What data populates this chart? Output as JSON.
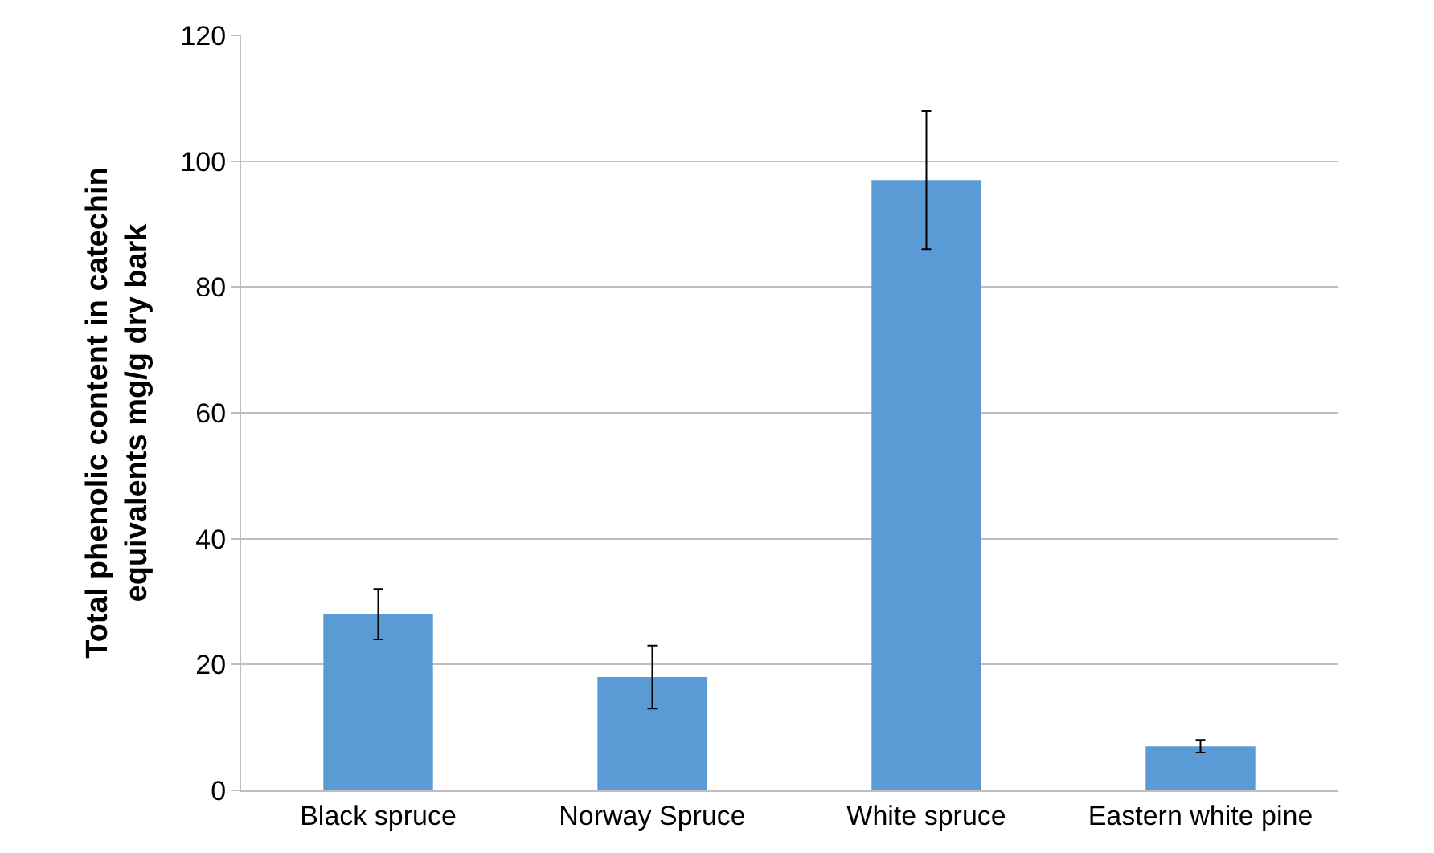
{
  "chart_data": {
    "type": "bar",
    "ylabel": "Total phenolic content in catechin equivalents mg/g dry bark",
    "categories": [
      "Black spruce",
      "Norway Spruce",
      "White spruce",
      "Eastern white pine"
    ],
    "values": [
      28,
      18,
      97,
      7
    ],
    "errors": [
      4,
      5,
      11,
      1
    ],
    "color": "#5b9bd5",
    "ylim": [
      0,
      120
    ],
    "yticks": [
      0,
      20,
      40,
      60,
      80,
      100,
      120
    ],
    "grid": "y",
    "legend": false
  }
}
